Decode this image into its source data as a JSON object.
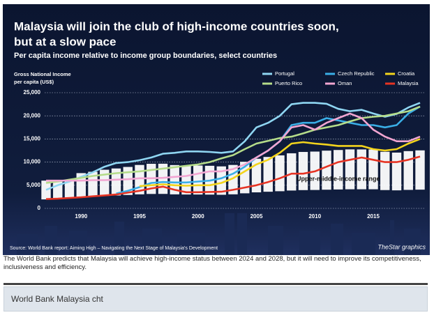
{
  "caption": "The World Bank predicts that Malaysia will achieve high-income status between 2024 and 2028, but it will need to improve its competitiveness, inclusiveness and efficiency.",
  "footer_label": "World Bank Malaysia cht",
  "chart_data": {
    "type": "line",
    "title": [
      "Malaysia will join the club of high-income countries soon,",
      "but at a slow pace"
    ],
    "subtitle": "Per capita income relative to income group boundaries, select countries",
    "ylabel": [
      "Gross National Income",
      "per capita (US$)"
    ],
    "source": "Source: World Bank report: Aiming High – Navigating the Next Stage of Malaysia's Development",
    "credit": "TheStar graphics",
    "x": [
      1987,
      1988,
      1989,
      1990,
      1991,
      1992,
      1993,
      1994,
      1995,
      1996,
      1997,
      1998,
      1999,
      2000,
      2001,
      2002,
      2003,
      2004,
      2005,
      2006,
      2007,
      2008,
      2009,
      2010,
      2011,
      2012,
      2013,
      2014,
      2015,
      2016,
      2017,
      2018,
      2019
    ],
    "xlim": [
      1987,
      2019
    ],
    "xticks": [
      1990,
      1995,
      2000,
      2005,
      2010,
      2015
    ],
    "ylim": [
      0,
      25000
    ],
    "yticks": [
      0,
      {
        "value": 5000,
        "label": "5,000"
      },
      {
        "value": 10000,
        "label": "10,000"
      },
      {
        "value": 15000,
        "label": "15,000"
      },
      {
        "value": 20000,
        "label": "20,000"
      },
      {
        "value": 25000,
        "label": "25,000"
      }
    ],
    "grid": true,
    "band": {
      "label": "Upper-middle-income range",
      "color": "#ffffff",
      "lower": [
        1940,
        2200,
        2335,
        2465,
        2555,
        2695,
        2785,
        2895,
        3035,
        3115,
        3125,
        3030,
        2995,
        2995,
        2975,
        2935,
        3035,
        3255,
        3465,
        3595,
        3705,
        3855,
        3945,
        3975,
        4035,
        4085,
        4125,
        4125,
        4125,
        3955,
        3895,
        3995,
        4045
      ],
      "upper": [
        6000,
        6000,
        6000,
        7620,
        7910,
        8355,
        8625,
        8955,
        9385,
        9635,
        9655,
        9360,
        9265,
        9265,
        9205,
        9075,
        9385,
        10065,
        10725,
        11115,
        11455,
        11905,
        12195,
        12275,
        12475,
        12615,
        12745,
        12735,
        12735,
        12235,
        12055,
        12375,
        12535
      ]
    },
    "series": [
      {
        "name": "Portugal",
        "color": "#8fd6f2",
        "values": [
          4000,
          5000,
          5800,
          6800,
          7800,
          9000,
          9800,
          10000,
          10400,
          11000,
          11800,
          12000,
          12300,
          12300,
          12200,
          12000,
          12300,
          14500,
          17500,
          18500,
          20000,
          22500,
          22800,
          22800,
          22600,
          21500,
          21000,
          21300,
          20500,
          19800,
          20400,
          21800,
          22800
        ]
      },
      {
        "name": "Czech Republic",
        "color": "#3aaee6",
        "values": [
          null,
          null,
          null,
          null,
          null,
          null,
          3200,
          3800,
          4600,
          5500,
          5700,
          5600,
          5600,
          5800,
          6000,
          6500,
          7500,
          9000,
          11000,
          12500,
          14500,
          18000,
          18500,
          18500,
          19500,
          19000,
          18500,
          18000,
          18000,
          17500,
          18000,
          20500,
          22000
        ]
      },
      {
        "name": "Croatia",
        "color": "#f3d41c",
        "values": [
          null,
          null,
          null,
          null,
          null,
          null,
          null,
          null,
          4800,
          5000,
          5200,
          5000,
          4900,
          5000,
          5000,
          5500,
          6500,
          8000,
          9500,
          10500,
          12000,
          14000,
          14300,
          14000,
          13800,
          13500,
          13500,
          13500,
          12800,
          12500,
          12800,
          14000,
          15000
        ]
      },
      {
        "name": "Puerto Rico",
        "color": "#b5dc8a",
        "values": [
          5500,
          5800,
          6200,
          6600,
          7000,
          7300,
          7600,
          7800,
          8000,
          8300,
          8600,
          8900,
          9200,
          9500,
          10000,
          10800,
          11500,
          12800,
          14000,
          14600,
          15200,
          15500,
          16200,
          17000,
          17500,
          18000,
          18800,
          19500,
          19800,
          20000,
          20500,
          21000,
          22000
        ]
      },
      {
        "name": "Oman",
        "color": "#f2a6d2",
        "values": [
          6000,
          6000,
          6000,
          6000,
          6100,
          6100,
          6200,
          6300,
          6500,
          6500,
          6600,
          6800,
          7000,
          7500,
          8000,
          8000,
          8500,
          9500,
          11000,
          12500,
          14500,
          17500,
          18000,
          17000,
          18500,
          19500,
          20500,
          19500,
          17000,
          15500,
          14500,
          14500,
          15500
        ]
      },
      {
        "name": "Malaysia",
        "color": "#e63323",
        "values": [
          2000,
          2100,
          2250,
          2400,
          2600,
          2800,
          3000,
          3400,
          3800,
          4300,
          4700,
          4000,
          3500,
          3500,
          3550,
          3600,
          4000,
          4500,
          5000,
          5700,
          6500,
          7500,
          7500,
          8000,
          9000,
          10000,
          10500,
          11000,
          10500,
          10000,
          10000,
          10500,
          11200
        ]
      }
    ]
  }
}
